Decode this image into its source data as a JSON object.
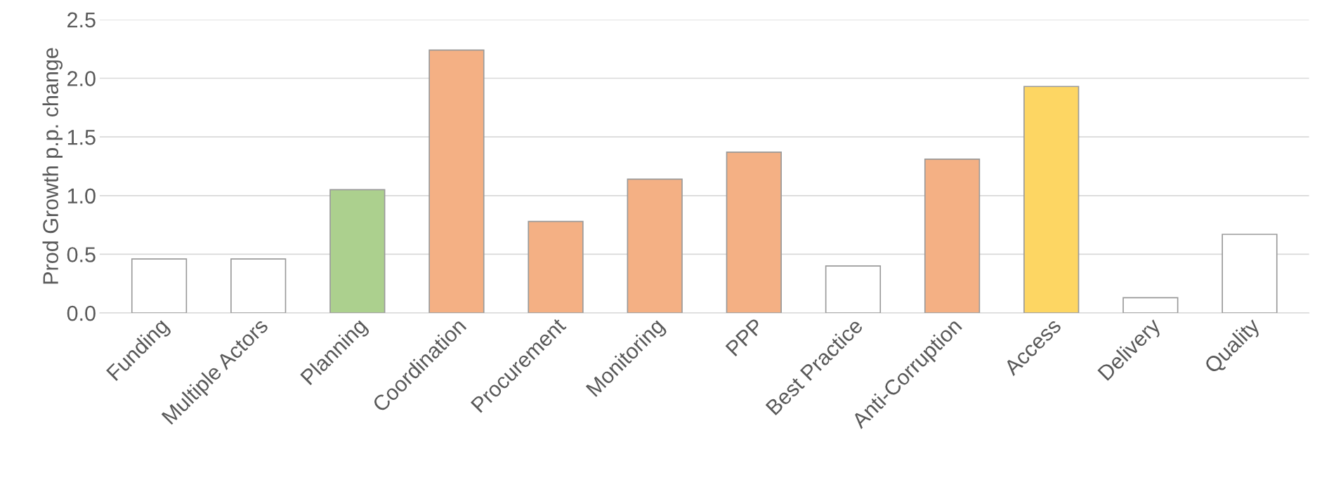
{
  "chart_data": {
    "type": "bar",
    "ylabel": "Prod Growth p.p. change",
    "categories": [
      "Funding",
      "Multiple Actors",
      "Planning",
      "Coordination",
      "Procurement",
      "Monitoring",
      "PPP",
      "Best Practice",
      "Anti-Corruption",
      "Access",
      "Delivery",
      "Quality"
    ],
    "values": [
      0.46,
      0.46,
      1.05,
      2.24,
      0.78,
      1.14,
      1.37,
      0.4,
      1.31,
      1.93,
      0.13,
      0.67
    ],
    "colors": [
      "#ffffff",
      "#ffffff",
      "#acd08e",
      "#f4b084",
      "#f4b084",
      "#f4b084",
      "#f4b084",
      "#ffffff",
      "#f4b084",
      "#fdd663",
      "#ffffff",
      "#ffffff"
    ],
    "ylim": [
      0,
      2.5
    ],
    "yticks": [
      {
        "value": 0,
        "label": "0.0"
      },
      {
        "value": 0.5,
        "label": "0.5"
      },
      {
        "value": 1,
        "label": "1.0"
      },
      {
        "value": 1.5,
        "label": "1.5"
      },
      {
        "value": 2,
        "label": "2.0"
      },
      {
        "value": 2.5,
        "label": "2.5"
      }
    ],
    "grid": "y",
    "legend": false
  }
}
